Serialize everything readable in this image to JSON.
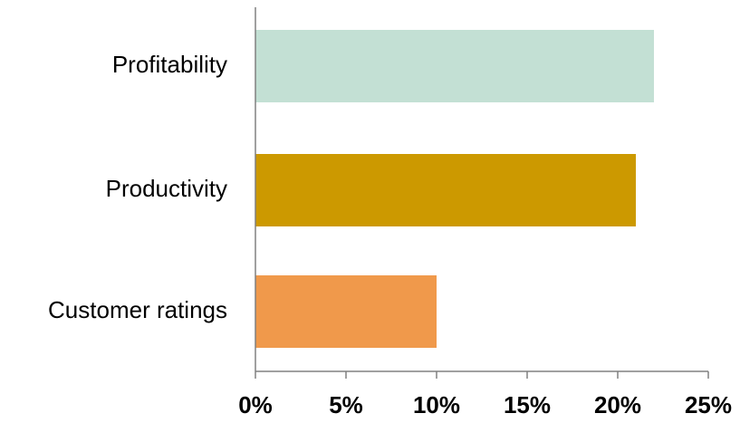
{
  "chart_data": {
    "type": "bar",
    "orientation": "horizontal",
    "categories": [
      "Profitability",
      "Productivity",
      "Customer ratings"
    ],
    "values": [
      22,
      21,
      10
    ],
    "colors": [
      "#c3e0d4",
      "#cc9900",
      "#f0994b"
    ],
    "xlim": [
      0,
      25
    ],
    "xticks": [
      0,
      5,
      10,
      15,
      20,
      25
    ],
    "tick_labels": [
      "0%",
      "5%",
      "10%",
      "15%",
      "20%",
      "25%"
    ],
    "unit": "%",
    "axis_color": "#808080",
    "grid": false,
    "legend": "none",
    "title": "",
    "xlabel": "",
    "ylabel": ""
  }
}
